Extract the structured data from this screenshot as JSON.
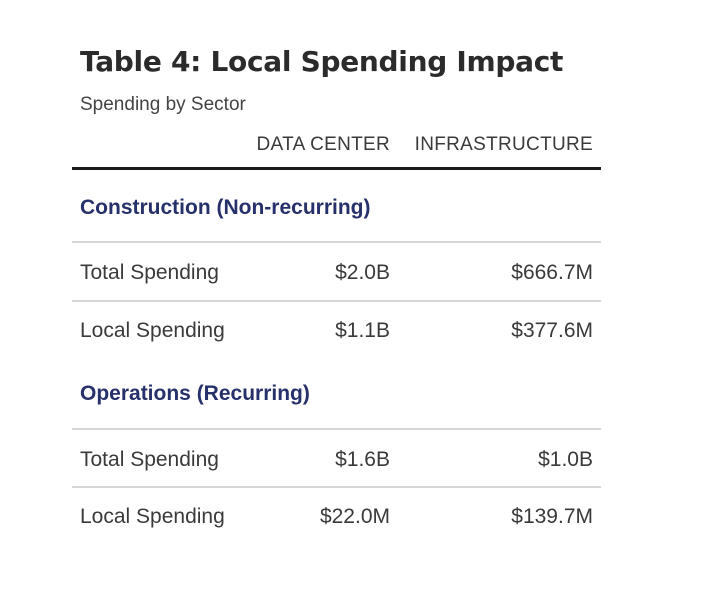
{
  "title": "Table 4: Local Spending Impact",
  "subtitle": "Spending by Sector",
  "columns": [
    "DATA CENTER",
    "INFRASTRUCTURE"
  ],
  "sections": [
    {
      "heading": "Construction (Non-recurring)",
      "rows": [
        {
          "label": "Total Spending",
          "values": [
            "$2.0B",
            "$666.7M"
          ]
        },
        {
          "label": "Local Spending",
          "values": [
            "$1.1B",
            "$377.6M"
          ]
        }
      ]
    },
    {
      "heading": "Operations (Recurring)",
      "rows": [
        {
          "label": "Total Spending",
          "values": [
            "$1.6B",
            "$1.0B"
          ]
        },
        {
          "label": "Local Spending",
          "values": [
            "$22.0M",
            "$139.7M"
          ]
        }
      ]
    }
  ]
}
